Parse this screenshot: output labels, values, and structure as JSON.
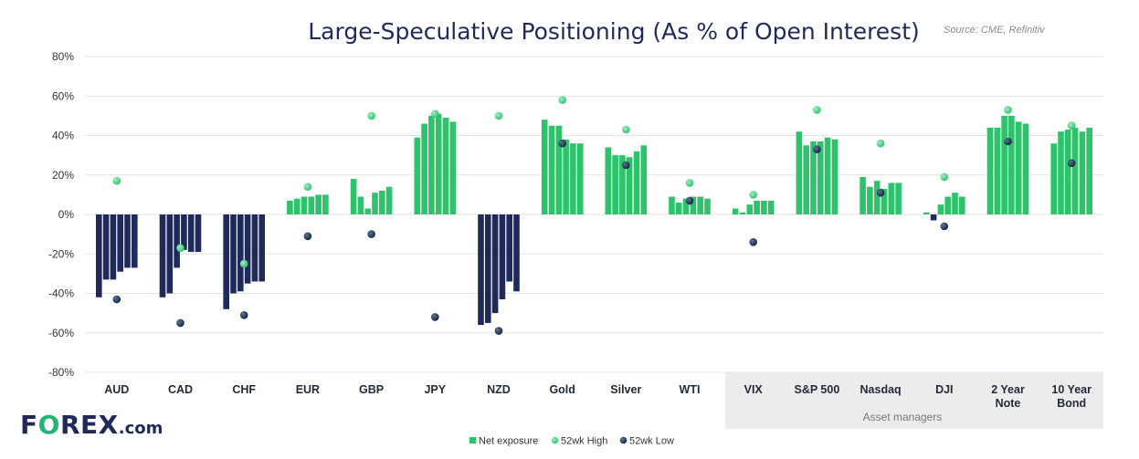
{
  "chart_data": {
    "type": "bar",
    "title": "Large-Speculative Positioning (As % of Open Interest)",
    "source": "Source: CME, Refinitiv",
    "ylim": [
      -80,
      80
    ],
    "yticks": [
      "80%",
      "60%",
      "40%",
      "20%",
      "0%",
      "-20%",
      "-40%",
      "-60%",
      "-80%"
    ],
    "grid": true,
    "group_label": "Asset managers",
    "categories": [
      {
        "label": [
          "AUD"
        ],
        "net": [
          -42,
          -33,
          -33,
          -29,
          -27,
          -27
        ],
        "high": 17,
        "low": -43
      },
      {
        "label": [
          "CAD"
        ],
        "net": [
          -42,
          -40,
          -27,
          -18,
          -19,
          -19
        ],
        "high": -17,
        "low": -55
      },
      {
        "label": [
          "CHF"
        ],
        "net": [
          -48,
          -40,
          -39,
          -35,
          -34,
          -34
        ],
        "high": -25,
        "low": -51
      },
      {
        "label": [
          "EUR"
        ],
        "net": [
          7,
          8,
          9,
          9,
          10,
          10
        ],
        "high": 14,
        "low": -11
      },
      {
        "label": [
          "GBP"
        ],
        "net": [
          18,
          9,
          3,
          11,
          12,
          14
        ],
        "high": 50,
        "low": -10
      },
      {
        "label": [
          "JPY"
        ],
        "net": [
          39,
          46,
          50,
          51,
          49,
          47
        ],
        "high": 51,
        "low": -52
      },
      {
        "label": [
          "NZD"
        ],
        "net": [
          -56,
          -55,
          -50,
          -43,
          -34,
          -39
        ],
        "high": 50,
        "low": -59
      },
      {
        "label": [
          "Gold"
        ],
        "net": [
          48,
          45,
          45,
          38,
          36,
          36
        ],
        "high": 58,
        "low": 36
      },
      {
        "label": [
          "Silver"
        ],
        "net": [
          34,
          30,
          30,
          29,
          32,
          35
        ],
        "high": 43,
        "low": 25
      },
      {
        "label": [
          "WTI"
        ],
        "net": [
          9,
          6,
          8,
          9,
          9,
          8
        ],
        "high": 16,
        "low": 7
      },
      {
        "label": [
          "VIX"
        ],
        "net": [
          3,
          1,
          5,
          7,
          7,
          7
        ],
        "high": 10,
        "low": -14
      },
      {
        "label": [
          "S&P 500"
        ],
        "net": [
          42,
          35,
          37,
          37,
          39,
          38
        ],
        "high": 53,
        "low": 33
      },
      {
        "label": [
          "Nasdaq"
        ],
        "net": [
          19,
          14,
          17,
          13,
          16,
          16
        ],
        "high": 36,
        "low": 11
      },
      {
        "label": [
          "DJI"
        ],
        "net": [
          1,
          -3,
          5,
          9,
          11,
          9
        ],
        "high": 19,
        "low": -6
      },
      {
        "label": [
          "2 Year",
          "Note"
        ],
        "net": [
          44,
          44,
          50,
          50,
          47,
          46
        ],
        "high": 53,
        "low": 37
      },
      {
        "label": [
          "10 Year",
          "Bond"
        ],
        "net": [
          36,
          42,
          43,
          44,
          42,
          44
        ],
        "high": 45,
        "low": 26
      }
    ],
    "legend": [
      {
        "name": "Net exposure",
        "marker": "square"
      },
      {
        "name": "52wk High",
        "marker": "dot-green"
      },
      {
        "name": "52wk Low",
        "marker": "dot-navy"
      }
    ],
    "legend_position": "bottom-center",
    "colors": {
      "positive": "#2cc36b",
      "negative": "#1f2a5a",
      "high": "#2cc36b",
      "low": "#12233e",
      "grid": "#e2e2e2"
    }
  },
  "logo": {
    "part1": "F",
    "part2": "O",
    "part3": "REX",
    "suffix": ".com"
  }
}
